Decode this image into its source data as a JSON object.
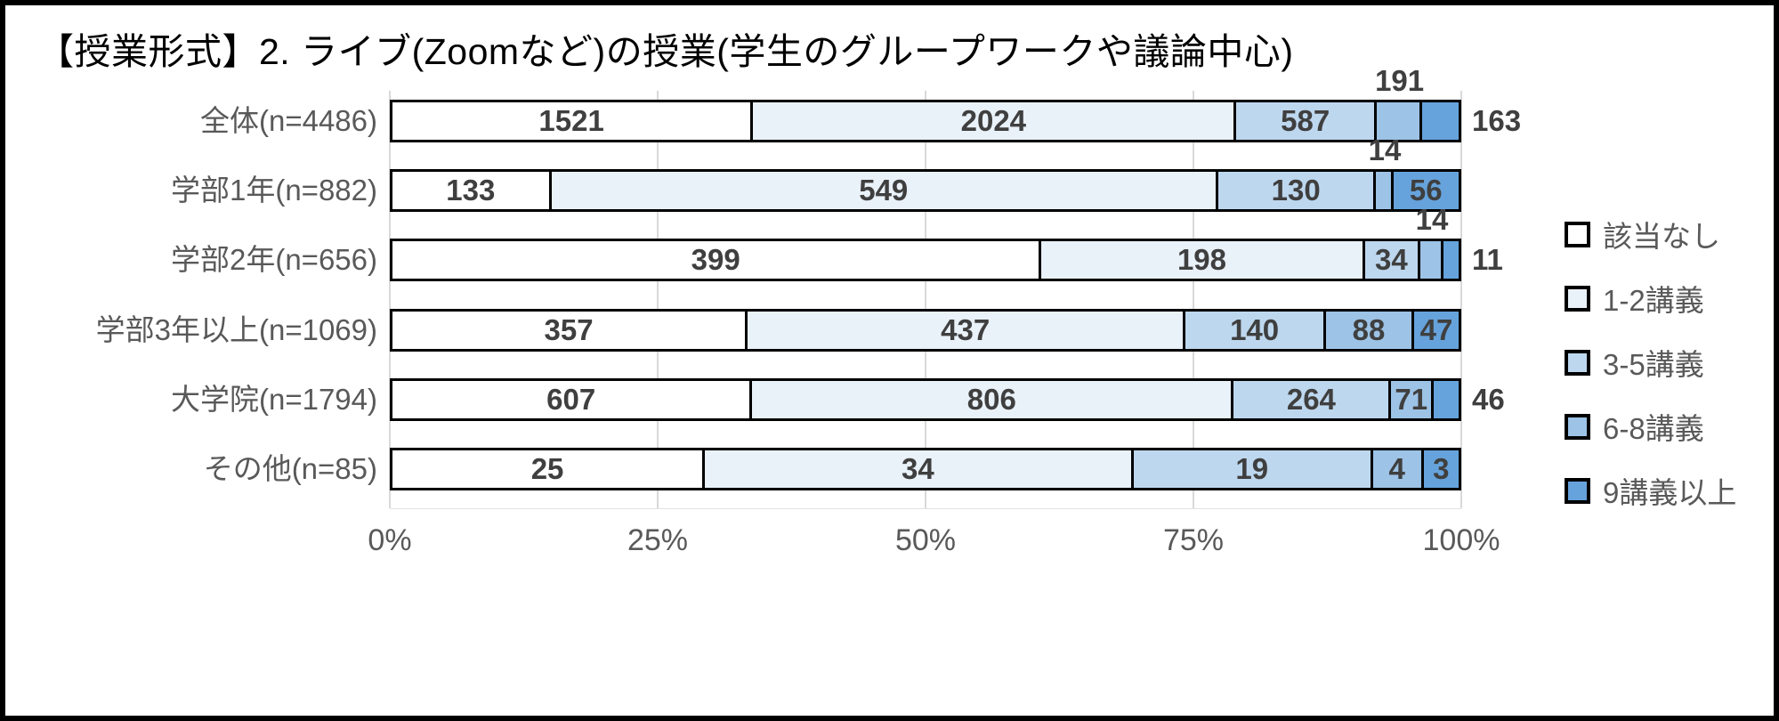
{
  "title": "【授業形式】2. ライブ(Zoomなど)の授業(学生のグループワークや議論中心)",
  "chart_data": {
    "type": "bar",
    "orientation": "horizontal",
    "stacked": "percent",
    "title": "【授業形式】2. ライブ(Zoomなど)の授業(学生のグループワークや議論中心)",
    "categories": [
      "全体(n=4486)",
      "学部1年(n=882)",
      "学部2年(n=656)",
      "学部3年以上(n=1069)",
      "大学院(n=1794)",
      "その他(n=85)"
    ],
    "totals": [
      4486,
      882,
      656,
      1069,
      1794,
      85
    ],
    "series": [
      {
        "name": "該当なし",
        "color": "#ffffff",
        "values": [
          1521,
          133,
          399,
          357,
          607,
          25
        ]
      },
      {
        "name": "1-2講義",
        "color": "#e9f1f9",
        "values": [
          2024,
          549,
          198,
          437,
          806,
          34
        ]
      },
      {
        "name": "3-5講義",
        "color": "#bdd7ee",
        "values": [
          587,
          130,
          34,
          140,
          264,
          19
        ]
      },
      {
        "name": "6-8講義",
        "color": "#9dc3e6",
        "values": [
          191,
          14,
          14,
          88,
          71,
          4
        ]
      },
      {
        "name": "9講義以上",
        "color": "#66a3dc",
        "values": [
          163,
          56,
          11,
          47,
          46,
          3
        ]
      }
    ],
    "value_label_positions": [
      [
        "in",
        "in",
        "in",
        "above",
        "out"
      ],
      [
        "in",
        "in",
        "in",
        "above",
        "in"
      ],
      [
        "in",
        "in",
        "in",
        "above",
        "out"
      ],
      [
        "in",
        "in",
        "in",
        "in",
        "in"
      ],
      [
        "in",
        "in",
        "in",
        "in",
        "out"
      ],
      [
        "in",
        "in",
        "in",
        "in",
        "in"
      ]
    ],
    "x_axis": {
      "tick_labels": [
        "0%",
        "25%",
        "50%",
        "75%",
        "100%"
      ],
      "range": [
        0,
        100
      ],
      "grid": true
    },
    "legend_position": "right",
    "colors": {
      "segment_border": "#000000",
      "outer_border": "#000000",
      "gridline": "#d9d9d9",
      "value_text": "#3f3f3f",
      "label_text": "#595959"
    }
  }
}
